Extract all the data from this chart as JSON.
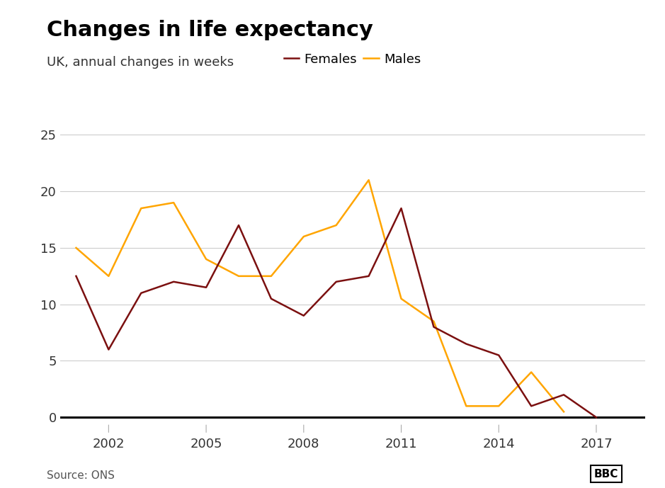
{
  "title": "Changes in life expectancy",
  "subtitle": "UK, annual changes in weeks",
  "source": "Source: ONS",
  "bbc_label": "BBC",
  "females_color": "#7B1010",
  "males_color": "#FFA500",
  "zero_line_color": "#000000",
  "grid_color": "#cccccc",
  "years": [
    2001,
    2002,
    2003,
    2004,
    2005,
    2006,
    2007,
    2008,
    2009,
    2010,
    2011,
    2012,
    2013,
    2014,
    2015,
    2016,
    2017
  ],
  "females": [
    12.5,
    6.0,
    11.0,
    12.0,
    11.5,
    17.0,
    10.5,
    9.0,
    12.0,
    12.5,
    18.5,
    8.0,
    6.5,
    5.5,
    1.0,
    2.0,
    0.0
  ],
  "males": [
    15.0,
    12.5,
    18.5,
    19.0,
    14.0,
    12.5,
    12.5,
    16.0,
    17.0,
    21.0,
    10.5,
    8.5,
    1.0,
    1.0,
    4.0,
    0.5,
    null
  ],
  "xlim": [
    2000.5,
    2018.5
  ],
  "ylim": [
    -1.5,
    27
  ],
  "yticks": [
    0,
    5,
    10,
    15,
    20,
    25
  ],
  "xticks": [
    2002,
    2005,
    2008,
    2011,
    2014,
    2017
  ],
  "background_color": "#ffffff",
  "title_fontsize": 22,
  "subtitle_fontsize": 13,
  "tick_fontsize": 13,
  "legend_fontsize": 13,
  "source_fontsize": 11,
  "line_width": 1.8
}
